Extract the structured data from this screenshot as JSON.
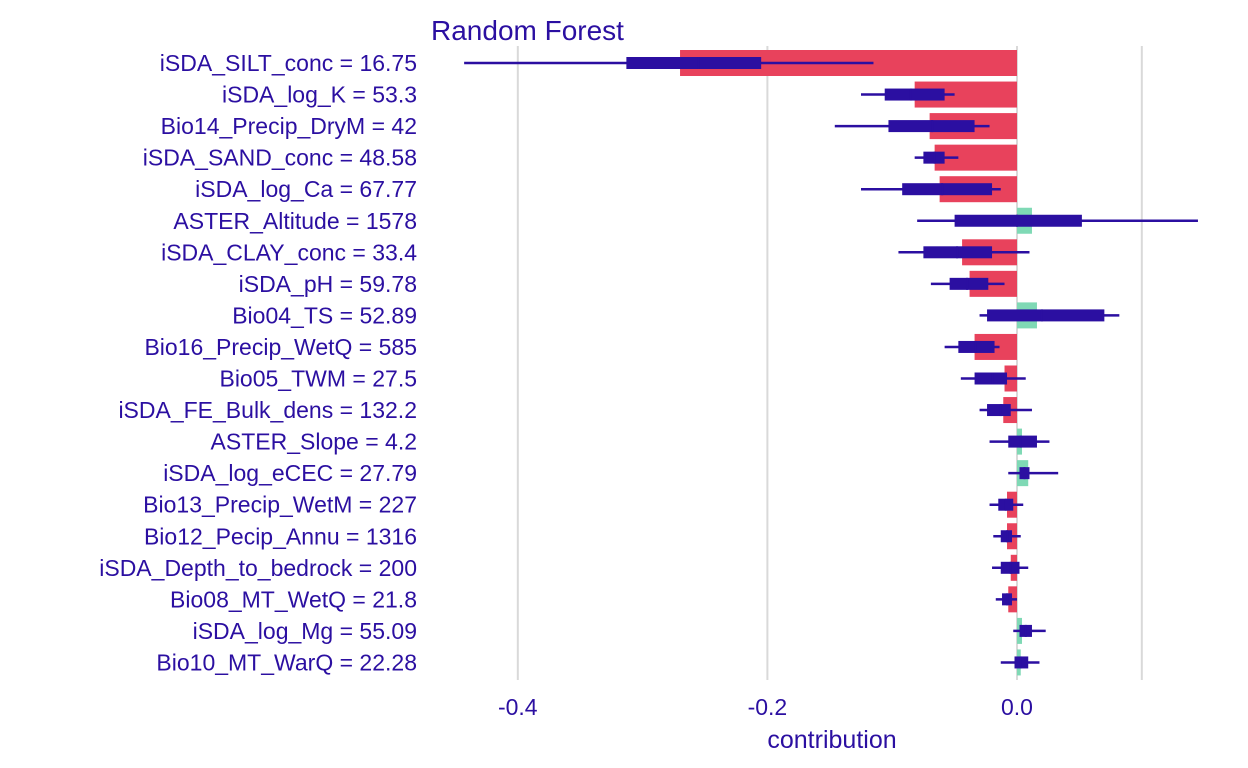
{
  "chart_data": {
    "type": "bar",
    "title": "Random Forest",
    "xlabel": "contribution",
    "ylabel": "",
    "xlim": [
      -0.44,
      0.16
    ],
    "xticks": [
      -0.4,
      -0.2,
      0.0
    ],
    "xtick_labels": [
      "-0.4",
      "-0.2",
      "0.0"
    ],
    "grid": true,
    "colors": {
      "negative": "#e8425c",
      "positive": "#7fd9b5",
      "boxplot": "#2b0fa1",
      "text": "#2b0fa1"
    },
    "features": [
      {
        "label": "iSDA_SILT_conc = 16.75",
        "contribution": -0.27,
        "whisker": [
          -0.443,
          -0.115
        ],
        "box": [
          -0.313,
          -0.205
        ],
        "median": -0.255
      },
      {
        "label": "iSDA_log_K = 53.3",
        "contribution": -0.082,
        "whisker": [
          -0.125,
          -0.05
        ],
        "box": [
          -0.106,
          -0.058
        ],
        "median": -0.085
      },
      {
        "label": "Bio14_Precip_DryM = 42",
        "contribution": -0.07,
        "whisker": [
          -0.146,
          -0.022
        ],
        "box": [
          -0.103,
          -0.034
        ],
        "median": -0.068
      },
      {
        "label": "iSDA_SAND_conc = 48.58",
        "contribution": -0.066,
        "whisker": [
          -0.082,
          -0.047
        ],
        "box": [
          -0.075,
          -0.058
        ],
        "median": -0.066
      },
      {
        "label": "iSDA_log_Ca = 67.77",
        "contribution": -0.062,
        "whisker": [
          -0.125,
          -0.013
        ],
        "box": [
          -0.092,
          -0.02
        ],
        "median": -0.06
      },
      {
        "label": "ASTER_Altitude = 1578",
        "contribution": 0.012,
        "whisker": [
          -0.08,
          0.145
        ],
        "box": [
          -0.05,
          0.052
        ],
        "median": 0.0
      },
      {
        "label": "iSDA_CLAY_conc = 33.4",
        "contribution": -0.044,
        "whisker": [
          -0.095,
          0.01
        ],
        "box": [
          -0.075,
          -0.02
        ],
        "median": -0.048
      },
      {
        "label": "iSDA_pH = 59.78",
        "contribution": -0.038,
        "whisker": [
          -0.069,
          -0.01
        ],
        "box": [
          -0.054,
          -0.023
        ],
        "median": -0.04
      },
      {
        "label": "Bio04_TS = 52.89",
        "contribution": 0.016,
        "whisker": [
          -0.03,
          0.082
        ],
        "box": [
          -0.024,
          0.07
        ],
        "median": 0.02
      },
      {
        "label": "Bio16_Precip_WetQ = 585",
        "contribution": -0.034,
        "whisker": [
          -0.058,
          -0.014
        ],
        "box": [
          -0.047,
          -0.018
        ],
        "median": -0.033
      },
      {
        "label": "Bio05_TWM = 27.5",
        "contribution": -0.01,
        "whisker": [
          -0.045,
          0.007
        ],
        "box": [
          -0.034,
          -0.008
        ],
        "median": -0.02
      },
      {
        "label": "iSDA_FE_Bulk_dens = 132.2",
        "contribution": -0.011,
        "whisker": [
          -0.03,
          0.012
        ],
        "box": [
          -0.024,
          -0.005
        ],
        "median": -0.013
      },
      {
        "label": "ASTER_Slope = 4.2",
        "contribution": 0.004,
        "whisker": [
          -0.022,
          0.026
        ],
        "box": [
          -0.007,
          0.016
        ],
        "median": 0.003
      },
      {
        "label": "iSDA_log_eCEC = 27.79",
        "contribution": 0.009,
        "whisker": [
          -0.007,
          0.033
        ],
        "box": [
          0.002,
          0.01
        ],
        "median": 0.006
      },
      {
        "label": "Bio13_Precip_WetM = 227",
        "contribution": -0.008,
        "whisker": [
          -0.022,
          0.005
        ],
        "box": [
          -0.015,
          -0.003
        ],
        "median": -0.009
      },
      {
        "label": "Bio12_Pecip_Annu = 1316",
        "contribution": -0.008,
        "whisker": [
          -0.019,
          0.003
        ],
        "box": [
          -0.013,
          -0.004
        ],
        "median": -0.008
      },
      {
        "label": "iSDA_Depth_to_bedrock = 200",
        "contribution": -0.005,
        "whisker": [
          -0.02,
          0.009
        ],
        "box": [
          -0.013,
          0.002
        ],
        "median": -0.005
      },
      {
        "label": "Bio08_MT_WetQ = 21.8",
        "contribution": -0.007,
        "whisker": [
          -0.017,
          0.0
        ],
        "box": [
          -0.012,
          -0.004
        ],
        "median": -0.008
      },
      {
        "label": "iSDA_log_Mg = 55.09",
        "contribution": 0.004,
        "whisker": [
          -0.003,
          0.023
        ],
        "box": [
          0.002,
          0.012
        ],
        "median": 0.007
      },
      {
        "label": "Bio10_MT_WarQ = 22.28",
        "contribution": 0.003,
        "whisker": [
          -0.013,
          0.018
        ],
        "box": [
          -0.002,
          0.009
        ],
        "median": 0.003
      }
    ]
  }
}
